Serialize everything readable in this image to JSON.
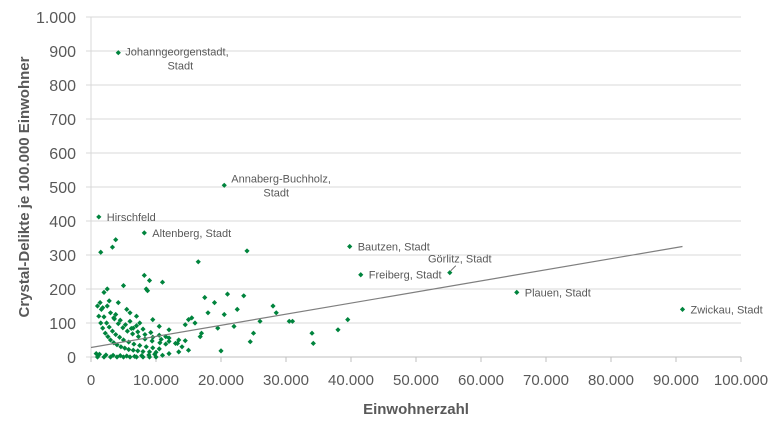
{
  "chart_data": {
    "type": "scatter",
    "title": "",
    "xlabel": "Einwohnerzahl",
    "ylabel": "Crystal-Delikte je 100.000 Einwohner",
    "xlim": [
      0,
      100000
    ],
    "ylim": [
      0,
      1000
    ],
    "x_ticks": [
      "0",
      "10.000",
      "20.000",
      "30.000",
      "40.000",
      "50.000",
      "60.000",
      "70.000",
      "80.000",
      "90.000",
      "100.000"
    ],
    "y_ticks": [
      "0",
      "100",
      "200",
      "300",
      "400",
      "500",
      "600",
      "700",
      "800",
      "900",
      "1.000"
    ],
    "grid": {
      "horizontal": true,
      "vertical": false
    },
    "legend": null,
    "colors": {
      "points": "#00843d",
      "trendline": "#7f7f7f",
      "grid": "#d9d9d9",
      "text": "#595959"
    },
    "trendline": {
      "type": "linear",
      "x": [
        0,
        91000
      ],
      "y": [
        28,
        325
      ]
    },
    "labeled_points": [
      {
        "label": "Johanngeorgenstadt, Stadt",
        "x": 4200,
        "y": 895
      },
      {
        "label": "Annaberg-Buchholz, Stadt",
        "x": 20500,
        "y": 505
      },
      {
        "label": "Hirschfeld",
        "x": 1200,
        "y": 412
      },
      {
        "label": "Altenberg, Stadt",
        "x": 8200,
        "y": 365
      },
      {
        "label": "Bautzen, Stadt",
        "x": 39800,
        "y": 325
      },
      {
        "label": "Görlitz, Stadt",
        "x": 55200,
        "y": 248
      },
      {
        "label": "Freiberg, Stadt",
        "x": 41500,
        "y": 242
      },
      {
        "label": "Plauen, Stadt",
        "x": 65500,
        "y": 190
      },
      {
        "label": "Zwickau, Stadt",
        "x": 91000,
        "y": 140
      }
    ],
    "points": [
      [
        1500,
        308
      ],
      [
        3300,
        323
      ],
      [
        3800,
        345
      ],
      [
        2000,
        190
      ],
      [
        2500,
        200
      ],
      [
        5000,
        210
      ],
      [
        1000,
        150
      ],
      [
        1400,
        160
      ],
      [
        1800,
        145
      ],
      [
        2800,
        165
      ],
      [
        3500,
        115
      ],
      [
        4200,
        160
      ],
      [
        8200,
        240
      ],
      [
        9000,
        225
      ],
      [
        8500,
        200
      ],
      [
        8700,
        195
      ],
      [
        11000,
        220
      ],
      [
        16500,
        280
      ],
      [
        24000,
        312
      ],
      [
        26000,
        105
      ],
      [
        21000,
        185
      ],
      [
        23500,
        180
      ],
      [
        28000,
        150
      ],
      [
        28500,
        130
      ],
      [
        17500,
        175
      ],
      [
        19000,
        160
      ],
      [
        22500,
        140
      ],
      [
        15000,
        110
      ],
      [
        15500,
        115
      ],
      [
        16000,
        100
      ],
      [
        18000,
        130
      ],
      [
        20500,
        125
      ],
      [
        14500,
        95
      ],
      [
        17000,
        70
      ],
      [
        22000,
        90
      ],
      [
        25000,
        70
      ],
      [
        30500,
        105
      ],
      [
        31000,
        105
      ],
      [
        34000,
        70
      ],
      [
        34200,
        40
      ],
      [
        38000,
        80
      ],
      [
        39500,
        110
      ],
      [
        24500,
        45
      ],
      [
        20000,
        18
      ],
      [
        16800,
        60
      ],
      [
        19500,
        85
      ],
      [
        12000,
        80
      ],
      [
        13000,
        40
      ],
      [
        14000,
        30
      ],
      [
        11500,
        60
      ],
      [
        10500,
        90
      ],
      [
        9500,
        110
      ],
      [
        7000,
        120
      ],
      [
        6000,
        130
      ],
      [
        5500,
        140
      ],
      [
        7500,
        100
      ],
      [
        6500,
        85
      ],
      [
        1000,
        0
      ],
      [
        2000,
        0
      ],
      [
        3000,
        0
      ],
      [
        4000,
        0
      ],
      [
        5000,
        0
      ],
      [
        6000,
        0
      ],
      [
        7000,
        0
      ],
      [
        8000,
        0
      ],
      [
        9000,
        0
      ],
      [
        10000,
        0
      ],
      [
        11000,
        5
      ],
      [
        12000,
        10
      ],
      [
        13500,
        15
      ],
      [
        15000,
        20
      ],
      [
        1200,
        120
      ],
      [
        1500,
        100
      ],
      [
        1800,
        85
      ],
      [
        2200,
        70
      ],
      [
        2600,
        60
      ],
      [
        3000,
        50
      ],
      [
        3500,
        42
      ],
      [
        4000,
        36
      ],
      [
        4600,
        30
      ],
      [
        5200,
        26
      ],
      [
        5800,
        22
      ],
      [
        6500,
        20
      ],
      [
        7200,
        18
      ],
      [
        8000,
        16
      ],
      [
        9000,
        15
      ],
      [
        10000,
        14
      ],
      [
        1600,
        140
      ],
      [
        2000,
        118
      ],
      [
        2400,
        100
      ],
      [
        2800,
        88
      ],
      [
        3300,
        76
      ],
      [
        3800,
        66
      ],
      [
        4400,
        58
      ],
      [
        5000,
        50
      ],
      [
        5800,
        44
      ],
      [
        6600,
        38
      ],
      [
        7500,
        34
      ],
      [
        8500,
        30
      ],
      [
        9500,
        27
      ],
      [
        10500,
        24
      ],
      [
        2500,
        150
      ],
      [
        3000,
        130
      ],
      [
        3600,
        112
      ],
      [
        4200,
        98
      ],
      [
        4900,
        86
      ],
      [
        5600,
        76
      ],
      [
        6400,
        68
      ],
      [
        7300,
        60
      ],
      [
        8300,
        53
      ],
      [
        9400,
        47
      ],
      [
        10600,
        42
      ],
      [
        11500,
        38
      ],
      [
        3800,
        125
      ],
      [
        4500,
        108
      ],
      [
        5300,
        95
      ],
      [
        6200,
        84
      ],
      [
        7200,
        74
      ],
      [
        8300,
        66
      ],
      [
        9500,
        58
      ],
      [
        10800,
        52
      ],
      [
        12000,
        46
      ],
      [
        13300,
        40
      ],
      [
        6000,
        105
      ],
      [
        7000,
        92
      ],
      [
        8000,
        82
      ],
      [
        9200,
        72
      ],
      [
        10500,
        64
      ],
      [
        12000,
        56
      ],
      [
        13500,
        50
      ],
      [
        14500,
        48
      ],
      [
        800,
        10
      ],
      [
        1300,
        8
      ],
      [
        2300,
        6
      ],
      [
        3400,
        5
      ],
      [
        4500,
        4
      ],
      [
        5500,
        3
      ],
      [
        6700,
        2
      ],
      [
        7800,
        4
      ],
      [
        8900,
        6
      ],
      [
        9800,
        8
      ]
    ]
  }
}
